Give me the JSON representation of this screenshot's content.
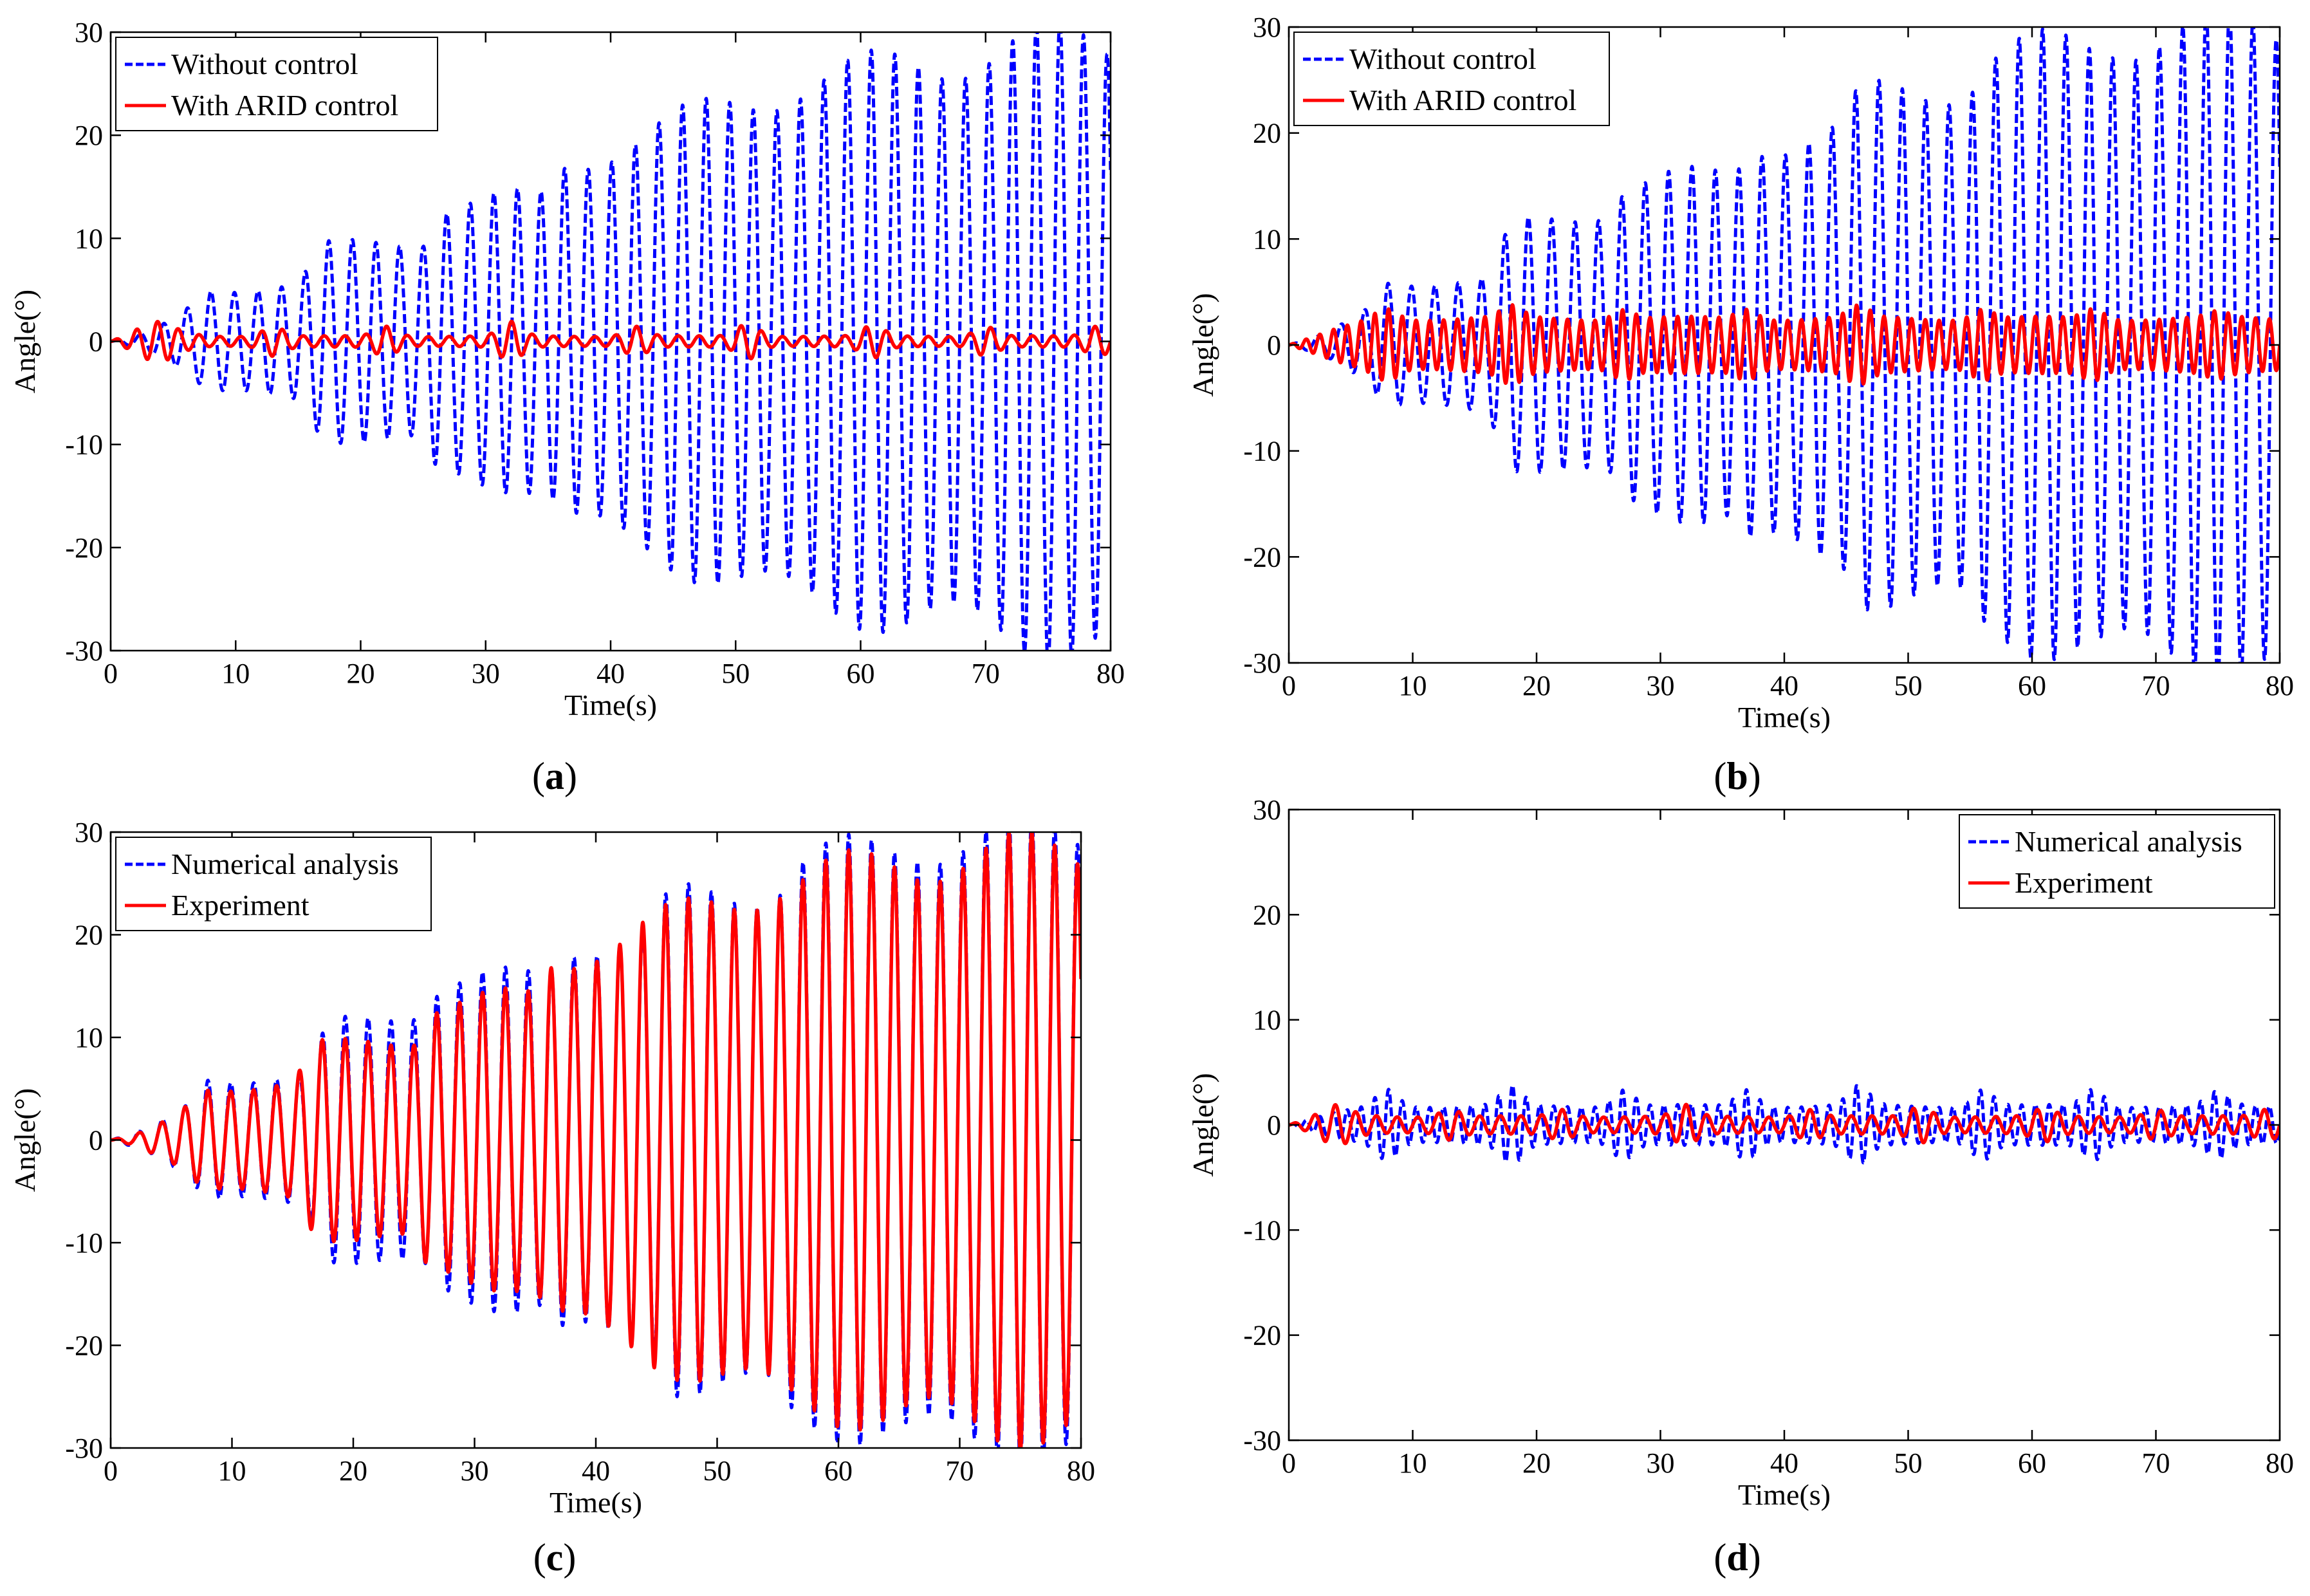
{
  "chart_data": [
    {
      "type": "line",
      "panel_label": "(a)",
      "xlabel": "Time(s)",
      "ylabel": "Angle(°)",
      "xlim": [
        0,
        80
      ],
      "ylim": [
        -30,
        30
      ],
      "xticks": [
        0,
        10,
        20,
        30,
        40,
        50,
        60,
        70,
        80
      ],
      "yticks": [
        -30,
        -20,
        -10,
        0,
        10,
        20,
        30
      ],
      "grid": false,
      "legend_position": "top-left",
      "series": [
        {
          "name": "Without control",
          "color": "#0000ff",
          "style": "dashed",
          "freq_hz": 0.53,
          "envelope": [
            [
              0,
              0
            ],
            [
              2,
              0.5
            ],
            [
              5,
              2
            ],
            [
              8,
              5
            ],
            [
              15,
              5.5
            ],
            [
              17,
              9
            ],
            [
              25,
              10
            ],
            [
              26,
              13
            ],
            [
              35,
              14
            ],
            [
              36,
              17
            ],
            [
              45,
              21
            ],
            [
              55,
              25
            ],
            [
              65,
              27
            ],
            [
              75,
              29
            ],
            [
              80,
              29
            ]
          ]
        },
        {
          "name": "With ARID control",
          "color": "#ff0000",
          "style": "solid",
          "freq_hz": 0.6,
          "envelope": [
            [
              0,
              0
            ],
            [
              3,
              1.5
            ],
            [
              5,
              1
            ],
            [
              8,
              0.5
            ],
            [
              80,
              0.5
            ]
          ],
          "bursts": [
            [
              4,
              1.8
            ],
            [
              13,
              1.5
            ],
            [
              22,
              1.5
            ],
            [
              32,
              1.8
            ],
            [
              42,
              1.5
            ],
            [
              51,
              1.8
            ],
            [
              61,
              1.5
            ],
            [
              70,
              1.5
            ],
            [
              79,
              1.5
            ]
          ]
        }
      ]
    },
    {
      "type": "line",
      "panel_label": "(b)",
      "xlabel": "Time(s)",
      "ylabel": "Angle(°)",
      "xlim": [
        0,
        80
      ],
      "ylim": [
        -30,
        30
      ],
      "xticks": [
        0,
        10,
        20,
        30,
        40,
        50,
        60,
        70,
        80
      ],
      "yticks": [
        -30,
        -20,
        -10,
        0,
        10,
        20,
        30
      ],
      "grid": false,
      "legend_position": "top-left",
      "series": [
        {
          "name": "Without control",
          "color": "#0000ff",
          "style": "dashed",
          "freq_hz": 0.53,
          "envelope": [
            [
              0,
              0
            ],
            [
              3,
              1
            ],
            [
              6,
              3
            ],
            [
              8,
              6
            ],
            [
              16,
              6
            ],
            [
              18,
              11
            ],
            [
              26,
              13
            ],
            [
              27,
              15
            ],
            [
              36,
              16
            ],
            [
              37,
              19
            ],
            [
              45,
              20
            ],
            [
              46,
              23
            ],
            [
              55,
              25
            ],
            [
              56,
              27
            ],
            [
              64,
              28
            ],
            [
              66,
              29
            ],
            [
              75,
              29.5
            ],
            [
              80,
              30
            ]
          ]
        },
        {
          "name": "With ARID control",
          "color": "#ff0000",
          "style": "solid",
          "freq_hz": 0.9,
          "envelope": [
            [
              0,
              0
            ],
            [
              4,
              1.5
            ],
            [
              7,
              2.5
            ],
            [
              80,
              2.5
            ]
          ],
          "bursts": [
            [
              8,
              3.5
            ],
            [
              18,
              3.5
            ],
            [
              27,
              3.5
            ],
            [
              37,
              3.5
            ],
            [
              46,
              3.5
            ],
            [
              56,
              3.5
            ],
            [
              65,
              3.5
            ],
            [
              75,
              3
            ]
          ]
        }
      ]
    },
    {
      "type": "line",
      "panel_label": "(c)",
      "xlabel": "Time(s)",
      "ylabel": "Angle(°)",
      "xlim": [
        0,
        80
      ],
      "ylim": [
        -30,
        30
      ],
      "xticks": [
        0,
        10,
        20,
        30,
        40,
        50,
        60,
        70,
        80
      ],
      "yticks": [
        -30,
        -20,
        -10,
        0,
        10,
        20,
        30
      ],
      "grid": false,
      "legend_position": "top-left",
      "series": [
        {
          "name": "Numerical analysis",
          "color": "#0000ff",
          "style": "dashed",
          "freq_hz": 0.53,
          "envelope": [
            [
              0,
              0
            ],
            [
              3,
              1
            ],
            [
              6,
              3
            ],
            [
              8,
              6
            ],
            [
              16,
              6
            ],
            [
              18,
              11
            ],
            [
              26,
              13
            ],
            [
              27,
              15
            ],
            [
              36,
              16
            ],
            [
              37,
              19
            ],
            [
              45,
              20
            ],
            [
              46,
              23
            ],
            [
              55,
              25
            ],
            [
              56,
              27
            ],
            [
              64,
              28
            ],
            [
              66,
              29
            ],
            [
              75,
              29.5
            ],
            [
              80,
              30
            ]
          ]
        },
        {
          "name": "Experiment",
          "color": "#ff0000",
          "style": "solid",
          "freq_hz": 0.53,
          "envelope": [
            [
              0,
              0
            ],
            [
              2,
              0.5
            ],
            [
              5,
              2
            ],
            [
              8,
              5
            ],
            [
              15,
              5.5
            ],
            [
              17,
              9
            ],
            [
              25,
              10
            ],
            [
              26,
              13
            ],
            [
              35,
              14
            ],
            [
              36,
              17
            ],
            [
              45,
              21
            ],
            [
              55,
              25
            ],
            [
              65,
              27
            ],
            [
              75,
              28
            ],
            [
              80,
              28
            ]
          ]
        }
      ]
    },
    {
      "type": "line",
      "panel_label": "(d)",
      "xlabel": "Time(s)",
      "ylabel": "Angle(°)",
      "xlim": [
        0,
        80
      ],
      "ylim": [
        -30,
        30
      ],
      "xticks": [
        0,
        10,
        20,
        30,
        40,
        50,
        60,
        70,
        80
      ],
      "yticks": [
        -30,
        -20,
        -10,
        0,
        10,
        20,
        30
      ],
      "grid": false,
      "legend_position": "top-right",
      "series": [
        {
          "name": "Numerical analysis",
          "color": "#0000ff",
          "style": "dashed",
          "freq_hz": 0.9,
          "envelope": [
            [
              0,
              0
            ],
            [
              4,
              1.2
            ],
            [
              7,
              1.8
            ],
            [
              80,
              1.8
            ]
          ],
          "bursts": [
            [
              8,
              3.5
            ],
            [
              18,
              3.5
            ],
            [
              27,
              3.5
            ],
            [
              37,
              3.5
            ],
            [
              46,
              3.5
            ],
            [
              56,
              3.5
            ],
            [
              65,
              3.5
            ],
            [
              75,
              3
            ]
          ]
        },
        {
          "name": "Experiment",
          "color": "#ff0000",
          "style": "solid",
          "freq_hz": 0.6,
          "envelope": [
            [
              0,
              0
            ],
            [
              3,
              1.2
            ],
            [
              5,
              1
            ],
            [
              8,
              0.8
            ],
            [
              80,
              0.8
            ]
          ],
          "bursts": [
            [
              4,
              1.8
            ],
            [
              13,
              1.5
            ],
            [
              22,
              1.5
            ],
            [
              32,
              1.8
            ],
            [
              42,
              1.5
            ],
            [
              51,
              1.8
            ],
            [
              61,
              1.5
            ],
            [
              70,
              1.5
            ],
            [
              79,
              1.5
            ]
          ]
        }
      ]
    }
  ]
}
